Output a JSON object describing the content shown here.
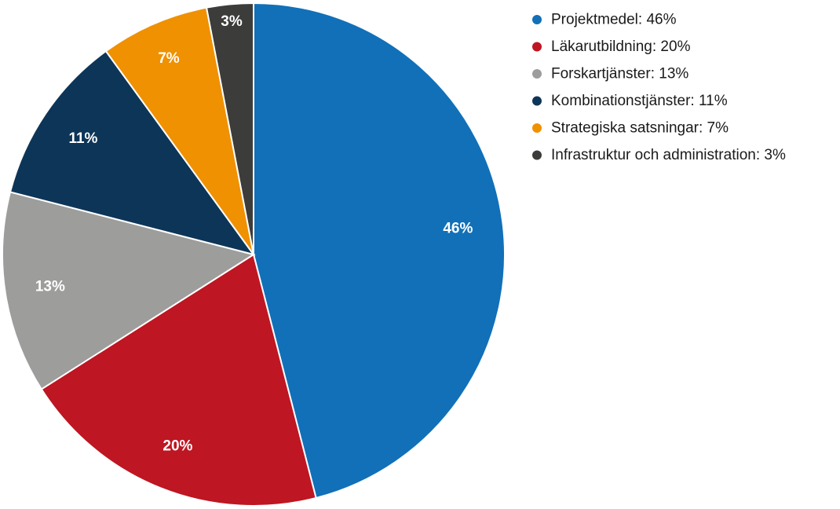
{
  "chart_data": {
    "type": "pie",
    "categories": [
      "Projektmedel",
      "Läkarutbildning",
      "Forskartjänster",
      "Kombinationstjänster",
      "Strategiska satsningar",
      "Infrastruktur och administration"
    ],
    "values": [
      46,
      20,
      13,
      11,
      7,
      3
    ],
    "data_labels": [
      "46%",
      "20%",
      "13%",
      "11%",
      "7%",
      "3%"
    ],
    "legend_labels": [
      "Projektmedel: 46%",
      "Läkarutbildning: 20%",
      "Forskartjänster: 13%",
      "Kombinationstjänster: 11%",
      "Strategiska satsningar: 7%",
      "Infrastruktur och administration: 3%"
    ],
    "colors": [
      "#1170b8",
      "#be1622",
      "#9d9d9c",
      "#0d3558",
      "#ef9100",
      "#3c3c3b"
    ],
    "legend_position": "top-right",
    "start_angle": "12 o'clock",
    "direction": "clockwise"
  }
}
